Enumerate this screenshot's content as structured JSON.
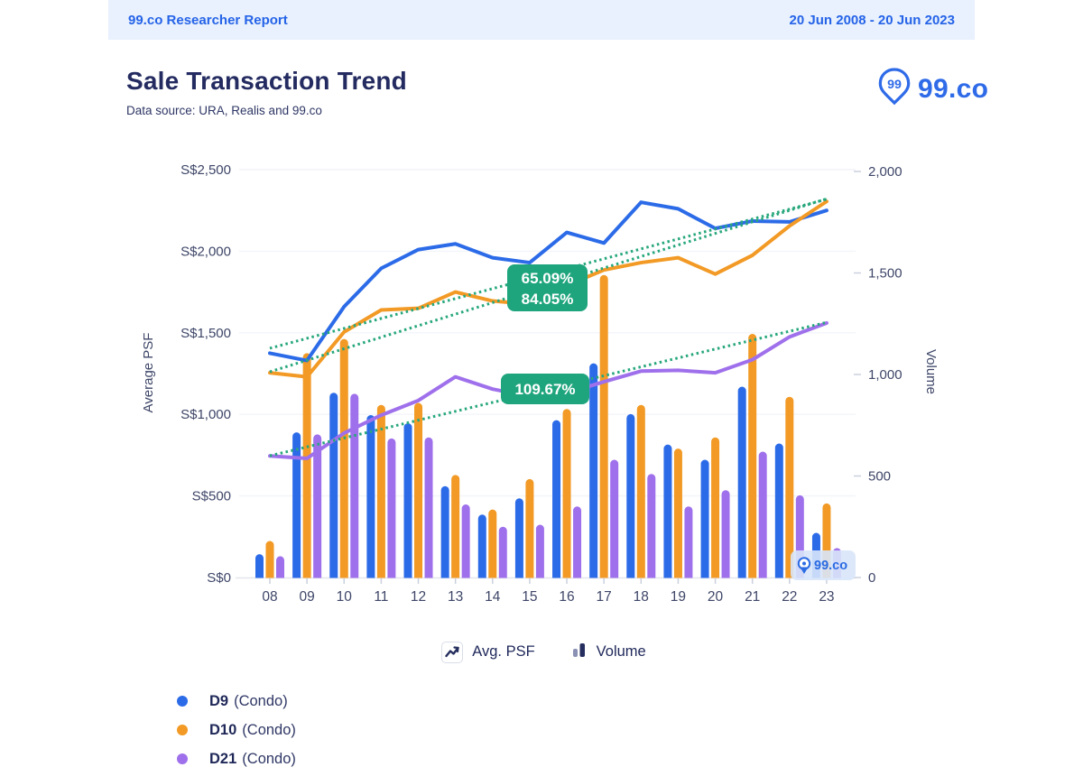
{
  "report_header": {
    "left": "99.co Researcher Report",
    "right": "20 Jun 2008 - 20 Jun 2023"
  },
  "title": "Sale Transaction Trend",
  "subtitle": "Data source: URA, Realis and 99.co",
  "logo_text": "99.co",
  "watermark_text": "99.co",
  "legend_top": {
    "avg_psf": "Avg. PSF",
    "volume": "Volume"
  },
  "chart_data": {
    "type": "combo-bar-line",
    "categories": [
      "08",
      "09",
      "10",
      "11",
      "12",
      "13",
      "14",
      "15",
      "16",
      "17",
      "18",
      "19",
      "20",
      "21",
      "22",
      "23"
    ],
    "psf_axis": {
      "title": "Average PSF",
      "min": 0,
      "max": 2500,
      "ticks": [
        {
          "v": 0,
          "label": "S$0"
        },
        {
          "v": 500,
          "label": "S$500"
        },
        {
          "v": 1000,
          "label": "S$1,000"
        },
        {
          "v": 1500,
          "label": "S$1,500"
        },
        {
          "v": 2000,
          "label": "S$2,000"
        },
        {
          "v": 2500,
          "label": "S$2,500"
        }
      ]
    },
    "volume_axis": {
      "title": "Volume",
      "min": 0,
      "max": 2000,
      "ticks": [
        {
          "v": 0,
          "label": "0"
        },
        {
          "v": 500,
          "label": "500"
        },
        {
          "v": 1000,
          "label": "1,000"
        },
        {
          "v": 1500,
          "label": "1,500"
        },
        {
          "v": 2000,
          "label": "2,000"
        }
      ]
    },
    "grid": true,
    "trend_color": "#27A77C",
    "annotation_bg": "#1FA57D",
    "series": [
      {
        "name": "D9",
        "suffix": "(Condo)",
        "color": "#2C6BE8",
        "avg_psf": [
          1375,
          1330,
          1660,
          1895,
          2010,
          2045,
          1960,
          1930,
          2115,
          2050,
          2300,
          2260,
          2140,
          2185,
          2180,
          2250
        ],
        "volume": [
          115,
          715,
          910,
          800,
          760,
          450,
          310,
          390,
          775,
          1055,
          805,
          655,
          580,
          940,
          660,
          220
        ],
        "trend": {
          "start": 1405,
          "end": 2319,
          "growth": "65.09%"
        }
      },
      {
        "name": "D10",
        "suffix": "(Condo)",
        "color": "#F29A25",
        "avg_psf": [
          1255,
          1230,
          1505,
          1640,
          1650,
          1750,
          1695,
          1675,
          1790,
          1885,
          1930,
          1960,
          1860,
          1975,
          2155,
          2305
        ],
        "volume": [
          180,
          1105,
          1175,
          850,
          860,
          505,
          335,
          485,
          830,
          1490,
          850,
          635,
          690,
          1200,
          890,
          365
        ],
        "trend": {
          "start": 1261,
          "end": 2321,
          "growth": "84.05%"
        }
      },
      {
        "name": "D21",
        "suffix": "(Condo)",
        "color": "#9F70EB",
        "avg_psf": [
          745,
          730,
          885,
          995,
          1085,
          1230,
          1155,
          1110,
          1130,
          1200,
          1265,
          1270,
          1255,
          1335,
          1475,
          1560
        ],
        "volume": [
          105,
          705,
          905,
          685,
          690,
          360,
          250,
          260,
          350,
          580,
          510,
          350,
          430,
          620,
          405,
          145
        ],
        "trend": {
          "start": 746,
          "end": 1564,
          "growth": "109.67%"
        }
      }
    ],
    "annotations": [
      {
        "lines": [
          "65.09%",
          "84.05%"
        ]
      },
      {
        "lines": [
          "109.67%"
        ]
      }
    ]
  }
}
